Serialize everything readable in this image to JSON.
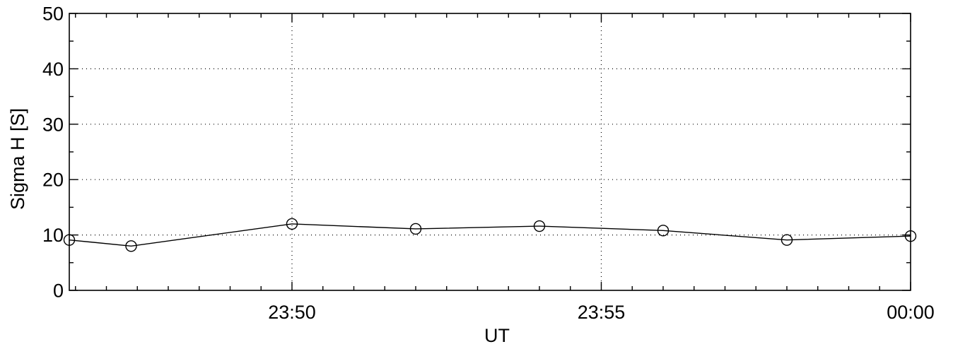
{
  "chart_data": {
    "type": "line",
    "title": "",
    "xlabel": "UT",
    "ylabel": "Sigma H [S]",
    "x_start": "23:46:24",
    "x_end": "00:00:00",
    "xlim": [
      "23:46:24",
      "00:00:00"
    ],
    "ylim": [
      0,
      50
    ],
    "grid": true,
    "x_tick_labels": [
      "23:50",
      "23:55",
      "00:00"
    ],
    "x_tick_values": [
      "23:50:00",
      "23:55:00",
      "00:00:00"
    ],
    "y_tick_labels": [
      "0",
      "10",
      "20",
      "30",
      "40",
      "50"
    ],
    "y_tick_values": [
      0,
      10,
      20,
      30,
      40,
      50
    ],
    "series": [
      {
        "marker": "circle",
        "x": [
          "23:46:24",
          "23:47:24",
          "23:50:00",
          "23:52:00",
          "23:54:00",
          "23:56:00",
          "23:58:00",
          "00:00:00"
        ],
        "values": [
          9.1,
          8.0,
          12.0,
          11.1,
          11.6,
          10.8,
          9.1,
          9.8
        ]
      }
    ]
  }
}
